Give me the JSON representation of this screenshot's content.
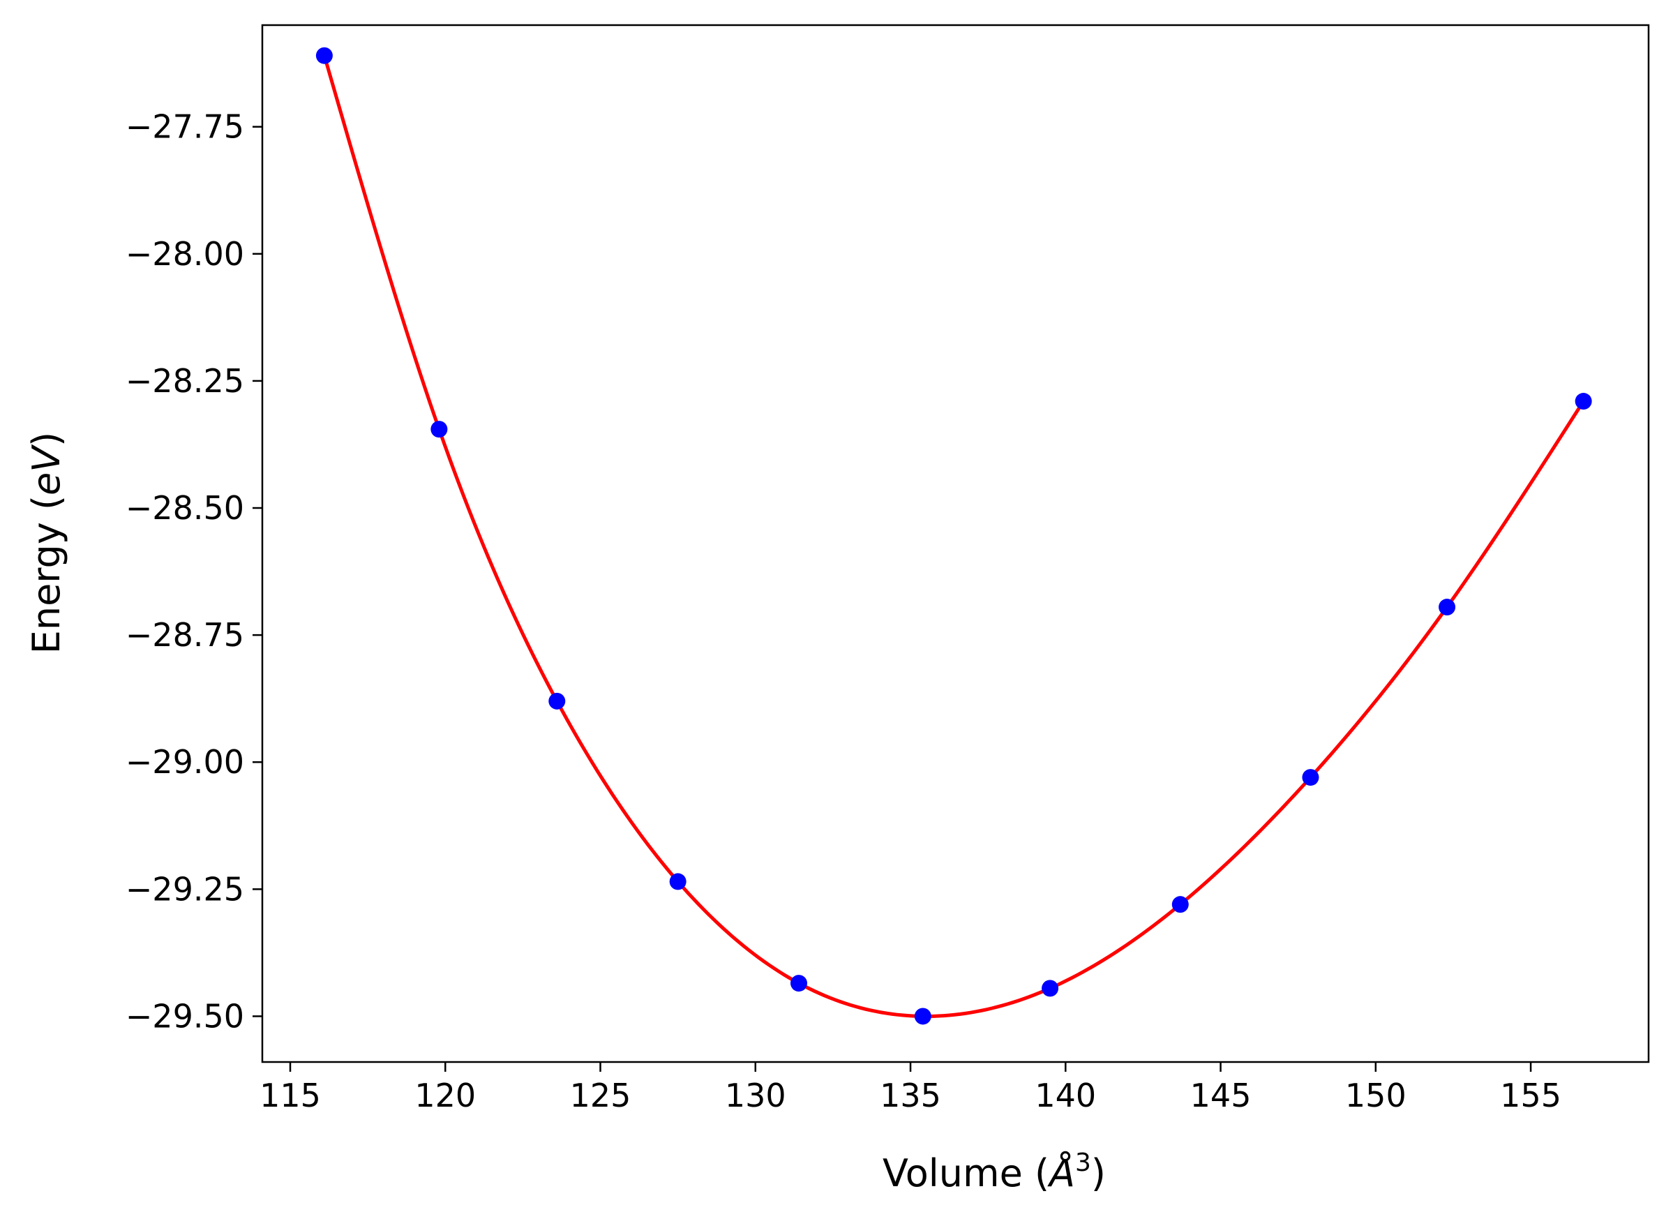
{
  "chart_data": {
    "type": "scatter",
    "title": "",
    "xlabel": "Volume (Å³)",
    "xlabel_parts": {
      "prefix": "Volume (",
      "unit": "Å",
      "power": "3",
      "suffix": ")"
    },
    "ylabel": "Energy (eV)",
    "ylabel_parts": {
      "prefix": "Energy (",
      "unit": "eV",
      "suffix": ")"
    },
    "xlim": [
      114.1,
      158.8
    ],
    "ylim": [
      -29.59,
      -27.55
    ],
    "x_ticks": [
      115,
      120,
      125,
      130,
      135,
      140,
      145,
      150,
      155
    ],
    "y_ticks": [
      -27.75,
      -28.0,
      -28.25,
      -28.5,
      -28.75,
      -29.0,
      -29.25,
      -29.5
    ],
    "x_tick_labels": [
      "115",
      "120",
      "125",
      "130",
      "135",
      "140",
      "145",
      "150",
      "155"
    ],
    "y_tick_labels": [
      "−27.75",
      "−28.00",
      "−28.25",
      "−28.50",
      "−28.75",
      "−29.00",
      "−29.25",
      "−29.50"
    ],
    "grid": false,
    "series": [
      {
        "kind": "points",
        "color": "#0000ff",
        "x": [
          116.1,
          119.8,
          123.6,
          127.5,
          131.4,
          135.4,
          139.5,
          143.7,
          147.9,
          152.3,
          156.7
        ],
        "y": [
          -27.61,
          -28.345,
          -28.88,
          -29.235,
          -29.435,
          -29.5,
          -29.445,
          -29.28,
          -29.03,
          -28.695,
          -28.29
        ]
      },
      {
        "kind": "fit-curve",
        "color": "#ff0000",
        "x": [
          116.1,
          119.8,
          123.6,
          127.5,
          131.4,
          135.4,
          139.5,
          143.7,
          147.9,
          152.3,
          156.7
        ],
        "y": [
          -27.61,
          -28.345,
          -28.88,
          -29.235,
          -29.435,
          -29.5,
          -29.445,
          -29.28,
          -29.03,
          -28.695,
          -28.29
        ]
      }
    ]
  }
}
